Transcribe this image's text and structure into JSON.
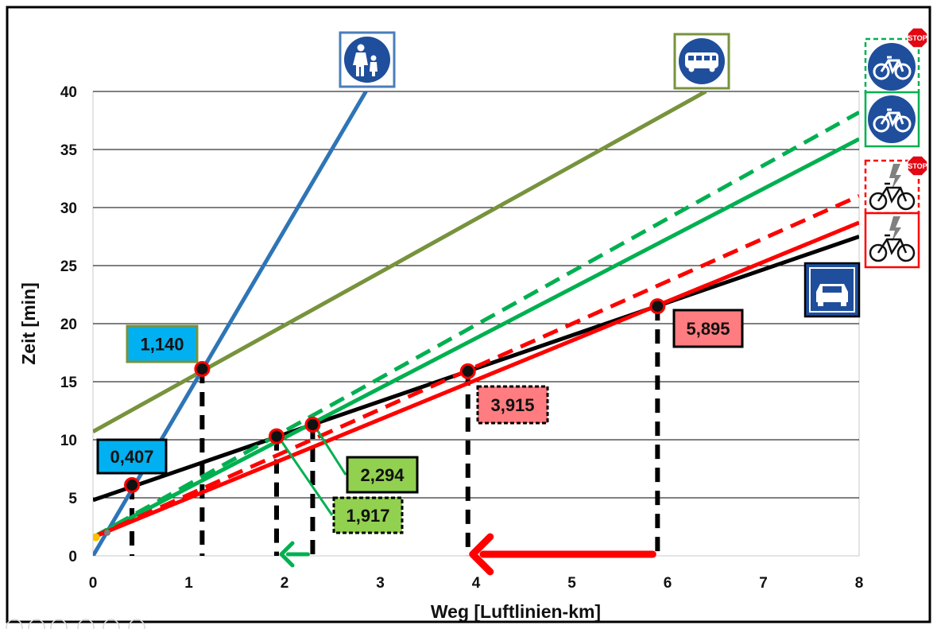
{
  "chart_data": {
    "type": "line",
    "title": "",
    "xlabel": "Weg [Luftlinien-km]",
    "ylabel": "Zeit [min]",
    "xlim": [
      0,
      8
    ],
    "ylim": [
      0,
      40
    ],
    "x_ticks": [
      "0",
      "1",
      "2",
      "3",
      "4",
      "5",
      "6",
      "7",
      "8"
    ],
    "y_ticks": [
      "0",
      "5",
      "10",
      "15",
      "20",
      "25",
      "30",
      "35",
      "40"
    ],
    "grid": "horizontal",
    "series": [
      {
        "icon": "pedestrian-sign-icon",
        "color": "#2e75b6",
        "dash": false,
        "points": [
          [
            0,
            0
          ],
          [
            2.85,
            40
          ]
        ]
      },
      {
        "icon": "bus-sign-icon",
        "color": "#77933c",
        "dash": false,
        "points": [
          [
            0,
            10.7
          ],
          [
            6.4,
            40
          ]
        ]
      },
      {
        "icon": "car-sign-icon",
        "color": "#000000",
        "dash": false,
        "points": [
          [
            0,
            4.8
          ],
          [
            8,
            27.5
          ]
        ]
      },
      {
        "icon": "bicycle-sign-stop-icon",
        "color": "#00b050",
        "dash": true,
        "points": [
          [
            0,
            1.6
          ],
          [
            8,
            38.2
          ]
        ]
      },
      {
        "icon": "bicycle-sign-icon",
        "color": "#00b050",
        "dash": false,
        "points": [
          [
            0,
            1.6
          ],
          [
            8,
            35.9
          ]
        ]
      },
      {
        "icon": "ebike-sign-stop-icon",
        "color": "#ff0000",
        "dash": true,
        "points": [
          [
            0,
            1.6
          ],
          [
            8,
            31.0
          ]
        ]
      },
      {
        "icon": "ebike-sign-icon",
        "color": "#ff0000",
        "dash": false,
        "points": [
          [
            0,
            1.6
          ],
          [
            8,
            28.7
          ]
        ]
      }
    ],
    "intersections": [
      {
        "x": 0.407,
        "y": 6.1,
        "label": "0,407",
        "box_color": "#00b0f0",
        "border": "#000000",
        "dashed_border": false
      },
      {
        "x": 1.14,
        "y": 16.1,
        "label": "1,140",
        "box_color": "#00b0f0",
        "border": "#77933c",
        "dashed_border": false
      },
      {
        "x": 1.917,
        "y": 10.3,
        "label": "1,917",
        "box_color": "#92d050",
        "border": "#000000",
        "dashed_border": true
      },
      {
        "x": 2.294,
        "y": 11.3,
        "label": "2,294",
        "box_color": "#92d050",
        "border": "#000000",
        "dashed_border": false
      },
      {
        "x": 3.915,
        "y": 15.9,
        "label": "3,915",
        "box_color": "#ff7c80",
        "border": "#000000",
        "dashed_border": true
      },
      {
        "x": 5.895,
        "y": 21.5,
        "label": "5,895",
        "box_color": "#ff7c80",
        "border": "#000000",
        "dashed_border": false
      }
    ],
    "arrows": [
      {
        "from_x": 2.294,
        "to_x": 1.917,
        "color": "#00b050"
      },
      {
        "from_x": 5.895,
        "to_x": 3.915,
        "color": "#ff0000"
      }
    ]
  },
  "signs": {
    "stop_text": "STOP",
    "sign_blue": "#1f4e9c"
  }
}
